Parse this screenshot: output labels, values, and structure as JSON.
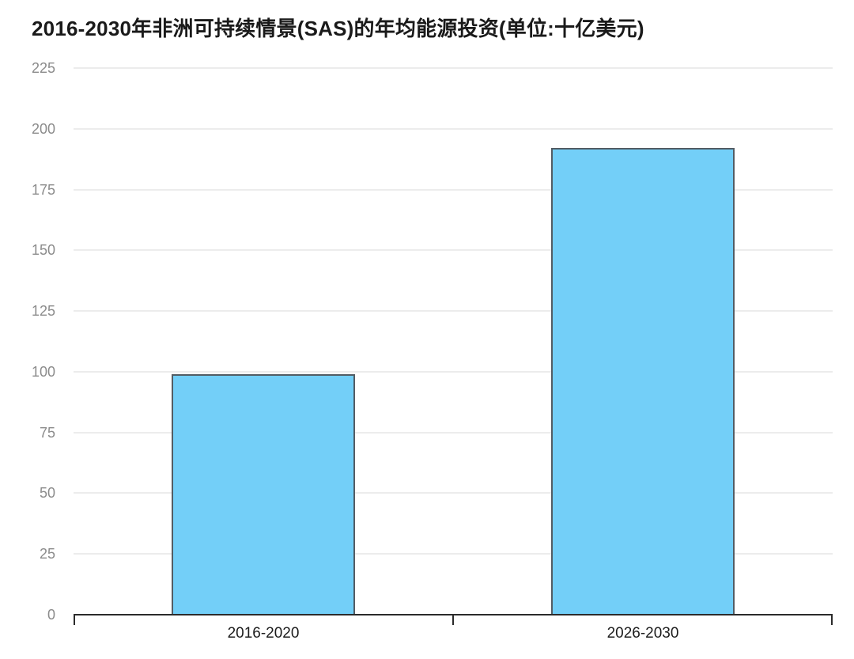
{
  "colors": {
    "background": "#FFFFFF",
    "title": "#1A1A1A",
    "bar_fill": "#73CFF8",
    "bar_border": "#525C64",
    "gridline": "#ECECEC",
    "axis": "#2B2B2B",
    "y_label": "#8B8B8B",
    "x_label": "#1C1C1C"
  },
  "chart_data": {
    "type": "bar",
    "title": "2016-2030年非洲可持续情景(SAS)的年均能源投资(单位:十亿美元)",
    "categories": [
      "2016-2020",
      "2026-2030"
    ],
    "values": [
      99,
      192
    ],
    "unit": "十亿美元",
    "xlabel": "",
    "ylabel": "",
    "ylim": [
      0,
      225
    ],
    "yticks": [
      0,
      25,
      50,
      75,
      100,
      125,
      150,
      175,
      200,
      225
    ],
    "grid": "horizontal",
    "legend": "none",
    "bar_width_fraction_of_plot": 0.2427
  }
}
